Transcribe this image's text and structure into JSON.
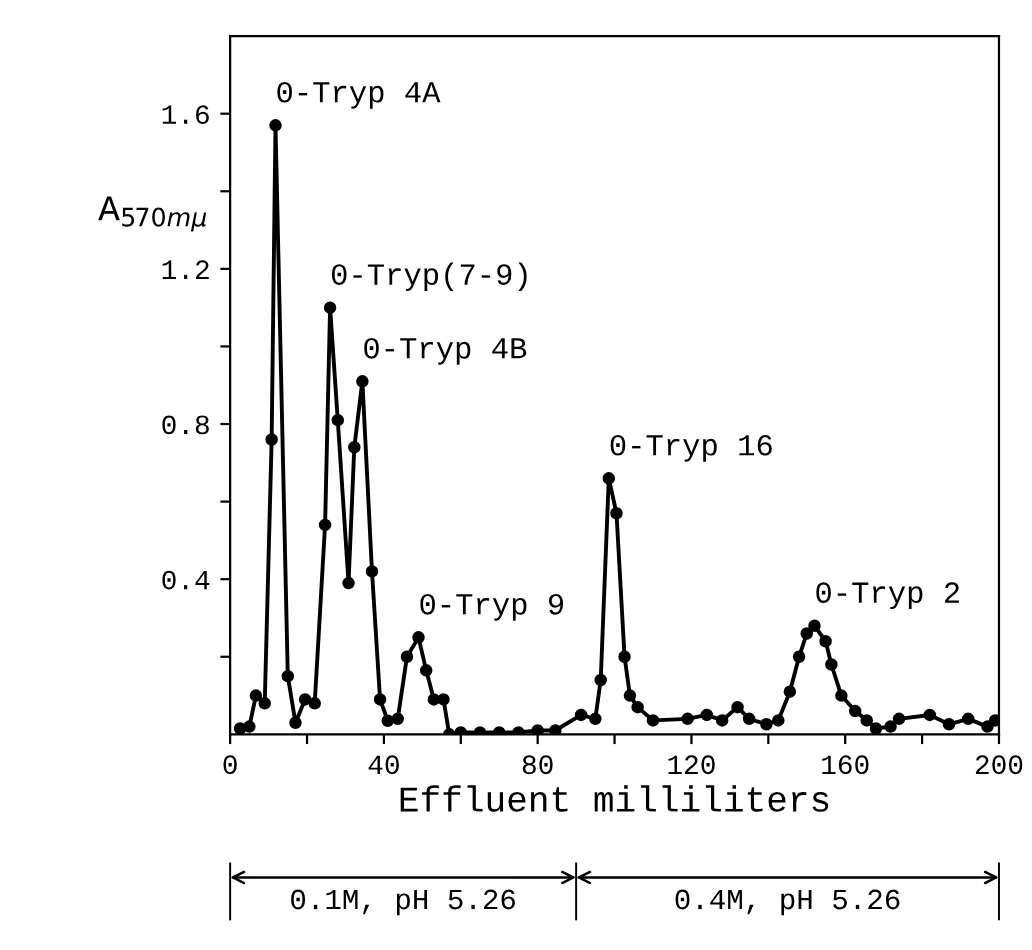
{
  "chart_data": {
    "type": "line",
    "xlabel": "Effluent milliliters",
    "ylabel": "A$_{570mμ}$",
    "x": [
      2.6,
      5,
      6.7,
      9,
      10.8,
      11.8,
      15,
      17,
      19.5,
      22,
      24.7,
      26,
      28,
      30.8,
      32.3,
      34.4,
      36.9,
      39,
      41,
      43.6,
      46,
      49,
      51,
      53,
      55.5,
      57,
      60,
      65,
      70,
      75,
      80,
      84.6,
      91.3,
      95,
      96.4,
      98.5,
      100.5,
      102.6,
      104,
      106,
      110,
      119,
      124,
      128,
      132,
      135,
      139.5,
      142.6,
      145.6,
      148,
      150,
      152,
      154.9,
      156.4,
      159,
      162.6,
      165.6,
      168,
      171.8,
      174,
      182,
      187,
      192,
      197,
      199
    ],
    "series": [
      {
        "color": "#000000",
        "values": [
          0.015,
          0.02,
          0.1,
          0.08,
          0.76,
          1.57,
          0.15,
          0.03,
          0.09,
          0.08,
          0.54,
          1.1,
          0.81,
          0.39,
          0.74,
          0.91,
          0.42,
          0.09,
          0.035,
          0.04,
          0.2,
          0.25,
          0.165,
          0.09,
          0.09,
          0.0,
          0.005,
          0.005,
          0.005,
          0.005,
          0.01,
          0.01,
          0.05,
          0.04,
          0.14,
          0.66,
          0.57,
          0.2,
          0.1,
          0.07,
          0.036,
          0.04,
          0.05,
          0.036,
          0.07,
          0.04,
          0.026,
          0.036,
          0.11,
          0.2,
          0.26,
          0.28,
          0.24,
          0.18,
          0.1,
          0.06,
          0.036,
          0.015,
          0.02,
          0.04,
          0.05,
          0.026,
          0.04,
          0.02,
          0.036
        ]
      }
    ],
    "xlim": [
      0,
      200
    ],
    "ylim": [
      0,
      1.8
    ],
    "xticks": [
      0,
      {
        "value": 20,
        "label": null
      },
      40,
      {
        "value": 60,
        "label": null
      },
      80,
      {
        "value": 100,
        "label": null
      },
      120,
      {
        "value": 140,
        "label": null
      },
      160,
      {
        "value": 180,
        "label": null
      },
      200
    ],
    "yticks": [
      {
        "value": 0.2,
        "label": null
      },
      0.4,
      {
        "value": 0.6,
        "label": null
      },
      0.8,
      {
        "value": 1.0,
        "label": null
      },
      1.2,
      {
        "value": 1.4,
        "label": null
      },
      1.6
    ],
    "marker": "circle",
    "line_style": "solid",
    "grid": false,
    "legend": false,
    "annotations": [
      {
        "text": "0-Tryp 4A",
        "x": 11.8,
        "y": 1.57
      },
      {
        "text": "0-Tryp(7-9)",
        "x": 26,
        "y": 1.1
      },
      {
        "text": "0-Tryp 4B",
        "x": 34.4,
        "y": 0.91
      },
      {
        "text": "0-Tryp 9",
        "x": 49,
        "y": 0.25
      },
      {
        "text": "0-Tryp 16",
        "x": 98.5,
        "y": 0.66
      },
      {
        "text": "0-Tryp 2",
        "x": 152,
        "y": 0.28
      },
      "0.1M, pH 5.26",
      "0.4M, pH 5.26"
    ]
  }
}
